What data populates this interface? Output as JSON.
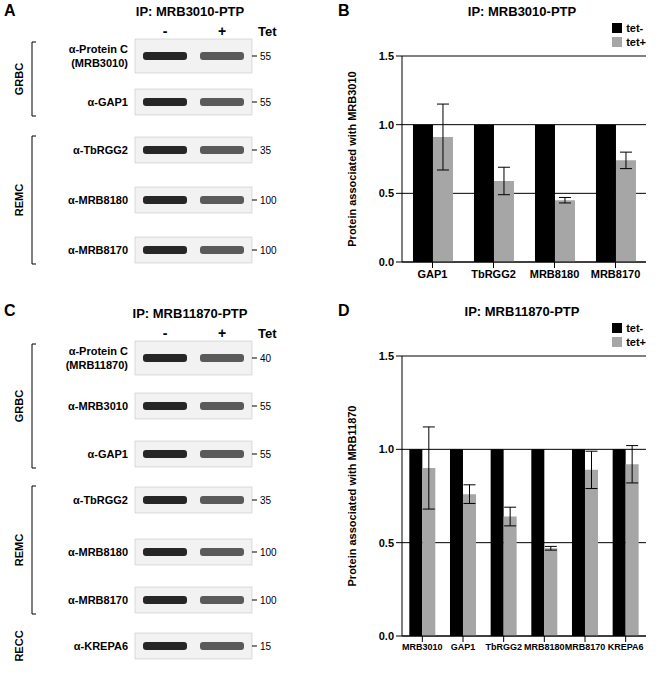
{
  "panel_labels": [
    "A",
    "B",
    "C",
    "D"
  ],
  "blots": [
    {
      "title": "IP: MRB3010-PTP",
      "lanes": [
        "-",
        "+"
      ],
      "lane_header": "Tet",
      "groups": [
        {
          "name": "GRBC",
          "rows": [
            {
              "label": "α-Protein C",
              "sublabel": "(MRB3010)",
              "marker": 55
            },
            {
              "label": "α-GAP1",
              "marker": 55
            }
          ]
        },
        {
          "name": "REMC",
          "rows": [
            {
              "label": "α-TbRGG2",
              "marker": 35
            },
            {
              "label": "α-MRB8180",
              "marker": 100
            },
            {
              "label": "α-MRB8170",
              "marker": 100
            }
          ]
        }
      ]
    },
    {
      "title": "IP: MRB11870-PTP",
      "lanes": [
        "-",
        "+"
      ],
      "lane_header": "Tet",
      "groups": [
        {
          "name": "GRBC",
          "rows": [
            {
              "label": "α-Protein C",
              "sublabel": "(MRB11870)",
              "marker": 40
            },
            {
              "label": "α-MRB3010",
              "marker": 55
            },
            {
              "label": "α-GAP1",
              "marker": 55
            }
          ]
        },
        {
          "name": "REMC",
          "rows": [
            {
              "label": "α-TbRGG2",
              "marker": 35
            },
            {
              "label": "α-MRB8180",
              "marker": 100
            },
            {
              "label": "α-MRB8170",
              "marker": 100
            }
          ]
        },
        {
          "name": "RECC",
          "rows": [
            {
              "label": "α-KREPA6",
              "marker": 15
            }
          ]
        }
      ]
    }
  ],
  "chart_data": [
    {
      "type": "bar",
      "title": "IP: MRB3010-PTP",
      "y_label": "Protein associated with MRB3010",
      "categories": [
        "GAP1",
        "TbRGG2",
        "MRB8180",
        "MRB8170"
      ],
      "series": [
        {
          "name": "tet-",
          "color": "#000000",
          "values": [
            1,
            1,
            1,
            1
          ]
        },
        {
          "name": "tet+",
          "color": "#a6a6a6",
          "values": [
            0.91,
            0.59,
            0.45,
            0.74
          ],
          "errors": [
            0.24,
            0.1,
            0.02,
            0.06
          ]
        }
      ],
      "ylim": [
        0,
        1.5
      ],
      "yticks": [
        {
          "value": 0,
          "label": "0.0"
        },
        {
          "value": 0.5,
          "label": "0.5"
        },
        {
          "value": 1,
          "label": "1.0"
        },
        {
          "value": 1.5,
          "label": "1.5"
        }
      ],
      "grid": true,
      "legend": "top right"
    },
    {
      "type": "bar",
      "title": "IP: MRB11870-PTP",
      "y_label": "Protein associated with MRB11870",
      "categories": [
        "MRB3010",
        "GAP1",
        "TbRGG2",
        "MRB8180",
        "MRB8170",
        "KREPA6"
      ],
      "series": [
        {
          "name": "tet-",
          "color": "#000000",
          "values": [
            1,
            1,
            1,
            1,
            1,
            1
          ]
        },
        {
          "name": "tet+",
          "color": "#a6a6a6",
          "values": [
            0.9,
            0.76,
            0.64,
            0.47,
            0.89,
            0.92
          ],
          "errors": [
            0.22,
            0.05,
            0.05,
            0.01,
            0.1,
            0.1
          ]
        }
      ],
      "ylim": [
        0,
        1.5
      ],
      "yticks": [
        {
          "value": 0,
          "label": "0.0"
        },
        {
          "value": 0.5,
          "label": "0.5"
        },
        {
          "value": 1,
          "label": "1.0"
        },
        {
          "value": 1.5,
          "label": "1.5"
        }
      ],
      "grid": true,
      "legend": "top right"
    }
  ]
}
